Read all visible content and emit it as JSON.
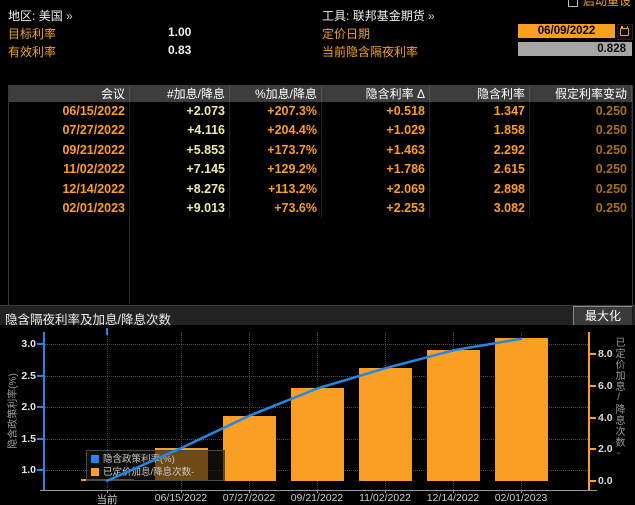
{
  "header": {
    "reset_label": "启动重设",
    "region_label": "地区:",
    "region_value": "美国",
    "region_more": "»",
    "tool_label": "工具:",
    "tool_value": "联邦基金期货",
    "tool_more": "»",
    "target_rate_label": "目标利率",
    "target_rate_value": "1.00",
    "effective_rate_label": "有效利率",
    "effective_rate_value": "0.83",
    "pricing_date_label": "定价日期",
    "pricing_date_value": "06/09/2022",
    "implied_on_rate_label": "当前隐含隔夜利率",
    "implied_on_rate_value": "0.828"
  },
  "table": {
    "columns": [
      "会议",
      "#加息/降息",
      "%加息/降息",
      "隐含利率 Δ",
      "隐含利率",
      "假定利率变动"
    ],
    "rows": [
      [
        "06/15/2022",
        "+2.073",
        "+207.3%",
        "+0.518",
        "1.347",
        "0.250"
      ],
      [
        "07/27/2022",
        "+4.116",
        "+204.4%",
        "+1.029",
        "1.858",
        "0.250"
      ],
      [
        "09/21/2022",
        "+5.853",
        "+173.7%",
        "+1.463",
        "2.292",
        "0.250"
      ],
      [
        "11/02/2022",
        "+7.145",
        "+129.2%",
        "+1.786",
        "2.615",
        "0.250"
      ],
      [
        "12/14/2022",
        "+8.276",
        "+113.2%",
        "+2.069",
        "2.898",
        "0.250"
      ],
      [
        "02/01/2023",
        "+9.013",
        "+73.6%",
        "+2.253",
        "3.082",
        "0.250"
      ]
    ]
  },
  "chart_section": {
    "title": "隐含隔夜利率及加息/降息次数",
    "maximize_label": "最大化"
  },
  "chart_data": {
    "type": "bar+line",
    "categories": [
      "当前",
      "06/15/2022",
      "07/27/2022",
      "09/21/2022",
      "11/02/2022",
      "12/14/2022",
      "02/01/2023"
    ],
    "series": [
      {
        "name": "隐含政策利率(%)",
        "type": "line",
        "axis": "left",
        "color": "#2287e8",
        "values": [
          0.828,
          1.347,
          1.858,
          2.292,
          2.615,
          2.898,
          3.082
        ]
      },
      {
        "name": "已定价加息/降息次数-",
        "type": "bar",
        "axis": "right",
        "color": "#fb9e24",
        "values": [
          0.15,
          2.073,
          4.116,
          5.853,
          7.145,
          8.276,
          9.013
        ]
      }
    ],
    "left_axis": {
      "title": "隐含政策利率(%)",
      "ticks": [
        3.0,
        2.5,
        2.0,
        1.5,
        1.0
      ],
      "color": "#2287e8"
    },
    "right_axis": {
      "title": "已定价加息/降息次数-",
      "ticks": [
        8.0,
        6.0,
        4.0,
        2.0,
        0.0
      ],
      "color": "#fb9e24"
    },
    "grid": true,
    "legend_position": "bottom-left"
  },
  "colors": {
    "accent_orange": "#fb9e24",
    "accent_blue": "#2287e8",
    "label_amber": "#f2a11a"
  }
}
